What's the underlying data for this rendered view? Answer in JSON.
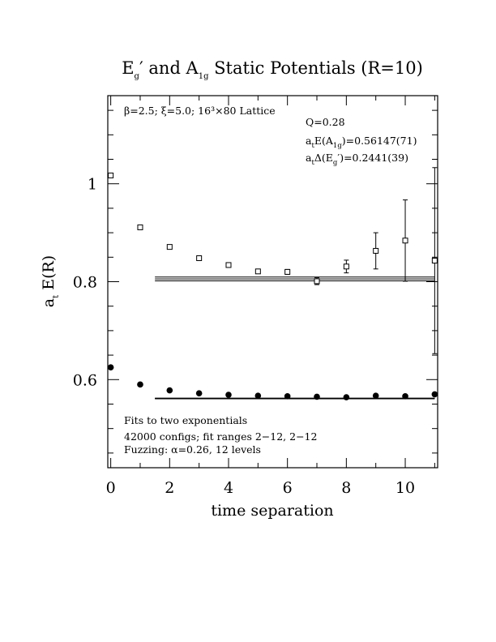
{
  "chart_data": {
    "type": "scatter",
    "title": {
      "main_a": "E",
      "sub_a": "g",
      "prime": "′",
      "mid": " and A",
      "sub_b": "1g",
      "rest": " Static Potentials (R=10)"
    },
    "xlabel": "time separation",
    "ylabel": {
      "main": "a",
      "sub": "t",
      "rest": " E(R)"
    },
    "xlim": [
      -0.1,
      11.1
    ],
    "ylim": [
      0.42,
      1.18
    ],
    "x_ticks": [
      0,
      2,
      4,
      6,
      8,
      10
    ],
    "x_tick_labels": [
      "0",
      "2",
      "4",
      "6",
      "8",
      "10"
    ],
    "y_ticks": [
      0.6,
      0.8,
      1.0
    ],
    "y_tick_labels": [
      "0.6",
      "0.8",
      "1"
    ],
    "grid": false,
    "series": [
      {
        "marker": "open-square",
        "x": [
          0,
          1,
          2,
          3,
          4,
          5,
          6,
          7,
          8,
          9,
          10,
          11
        ],
        "y": [
          1.017,
          0.911,
          0.871,
          0.848,
          0.834,
          0.821,
          0.82,
          0.801,
          0.831,
          0.863,
          0.884,
          0.843
        ],
        "err": [
          0.002,
          0.002,
          0.002,
          0.003,
          0.003,
          0.004,
          0.005,
          0.007,
          0.013,
          0.037,
          0.083,
          0.19
        ]
      },
      {
        "marker": "filled-circle",
        "x": [
          0,
          1,
          2,
          3,
          4,
          5,
          6,
          7,
          8,
          9,
          10,
          11
        ],
        "y": [
          0.625,
          0.59,
          0.578,
          0.572,
          0.569,
          0.567,
          0.566,
          0.565,
          0.564,
          0.567,
          0.566,
          0.57
        ],
        "err": [
          0.001,
          0.001,
          0.001,
          0.001,
          0.001,
          0.001,
          0.001,
          0.001,
          0.001,
          0.002,
          0.002,
          0.003
        ]
      }
    ],
    "fit_bands": [
      {
        "x_range": [
          1.5,
          11
        ],
        "center": 0.8056,
        "half_width": 0.0039,
        "lines": 3
      },
      {
        "x_range": [
          1.5,
          11
        ],
        "center": 0.56147,
        "half_width": 0.00071,
        "lines": 3
      }
    ],
    "annotations": {
      "lattice": "β=2.5; ξ=5.0; 16³×80 Lattice",
      "q": "Q=0.28",
      "eA1_pre": "a",
      "eA1_pre_sub": "t",
      "eA1_mid": "E(A",
      "eA1_mid_sub": "1g",
      "eA1_post": ")=0.56147(71)",
      "dE_pre": "a",
      "dE_pre_sub": "t",
      "dE_mid": "Δ(E",
      "dE_mid_sub": "g",
      "dE_post": "′)=0.2441(39)",
      "fits": "Fits to two exponentials",
      "configs": "42000 configs; fit ranges 2−12, 2−12",
      "fuzzing": "Fuzzing: α=0.26, 12 levels"
    }
  }
}
